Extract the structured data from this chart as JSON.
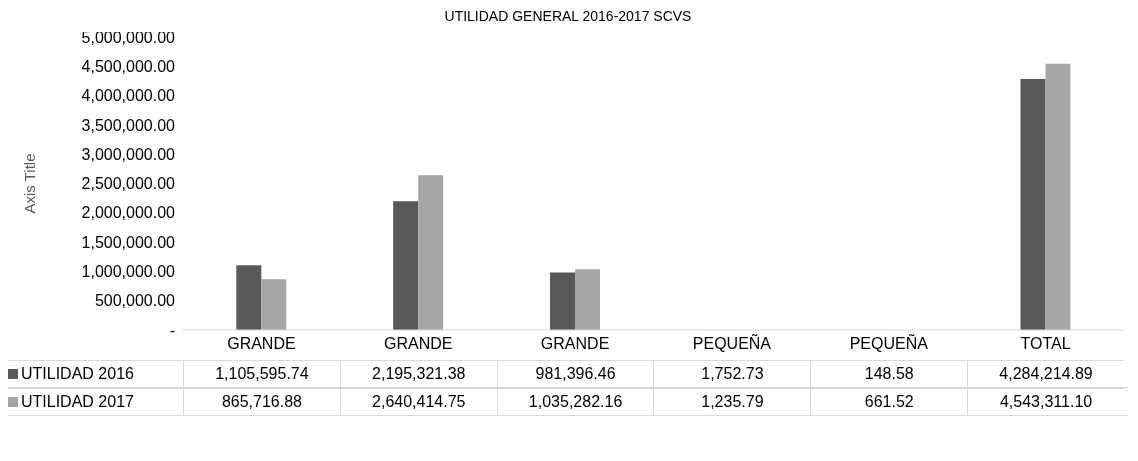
{
  "chart_data": {
    "type": "bar",
    "title": "UTILIDAD GENERAL 2016-2017 SCVS",
    "ylabel": "Axis Title",
    "categories": [
      "GRANDE",
      "GRANDE",
      "GRANDE",
      "PEQUEÑA",
      "PEQUEÑA",
      "TOTAL"
    ],
    "series": [
      {
        "name": "UTILIDAD 2016",
        "color": "#595959",
        "values": [
          1105595.74,
          2195321.38,
          981396.46,
          1752.73,
          148.58,
          4284214.89
        ],
        "value_labels": [
          "1,105,595.74",
          "2,195,321.38",
          "981,396.46",
          "1,752.73",
          "148.58",
          "4,284,214.89"
        ]
      },
      {
        "name": "UTILIDAD 2017",
        "color": "#a6a6a6",
        "values": [
          865716.88,
          2640414.75,
          1035282.16,
          1235.79,
          661.52,
          4543311.1
        ],
        "value_labels": [
          "865,716.88",
          "2,640,414.75",
          "1,035,282.16",
          "1,235.79",
          "661.52",
          "4,543,311.10"
        ]
      }
    ],
    "ylim": [
      0,
      5000000
    ],
    "yticks": [
      {
        "value": 0,
        "label": "-"
      },
      {
        "value": 500000,
        "label": "500,000.00"
      },
      {
        "value": 1000000,
        "label": "1,000,000.00"
      },
      {
        "value": 1500000,
        "label": "1,500,000.00"
      },
      {
        "value": 2000000,
        "label": "2,000,000.00"
      },
      {
        "value": 2500000,
        "label": "2,500,000.00"
      },
      {
        "value": 3000000,
        "label": "3,000,000.00"
      },
      {
        "value": 3500000,
        "label": "3,500,000.00"
      },
      {
        "value": 4000000,
        "label": "4,000,000.00"
      },
      {
        "value": 4500000,
        "label": "4,500,000.00"
      },
      {
        "value": 5000000,
        "label": "5,000,000.00"
      }
    ],
    "grid": false,
    "legend": "bottom"
  }
}
